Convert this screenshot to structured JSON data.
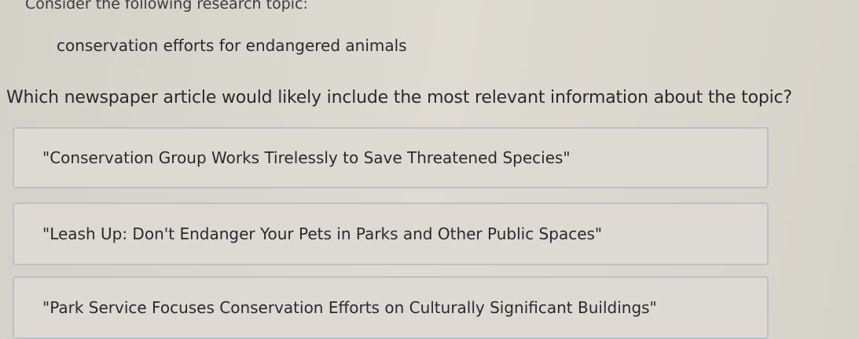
{
  "intro": "Consider the following research topic:",
  "topic": "conservation efforts for endangered animals",
  "question": "Which newspaper article would likely include the most relevant information about the topic?",
  "options": [
    {
      "label": "\"Conservation Group Works Tirelessly to Save Threatened Species\""
    },
    {
      "label": "\"Leash Up: Don't Endanger Your Pets in Parks and Other Public Spaces\""
    },
    {
      "label": "\"Park Service Focuses Conservation Efforts on Culturally Significant Buildings\""
    }
  ]
}
